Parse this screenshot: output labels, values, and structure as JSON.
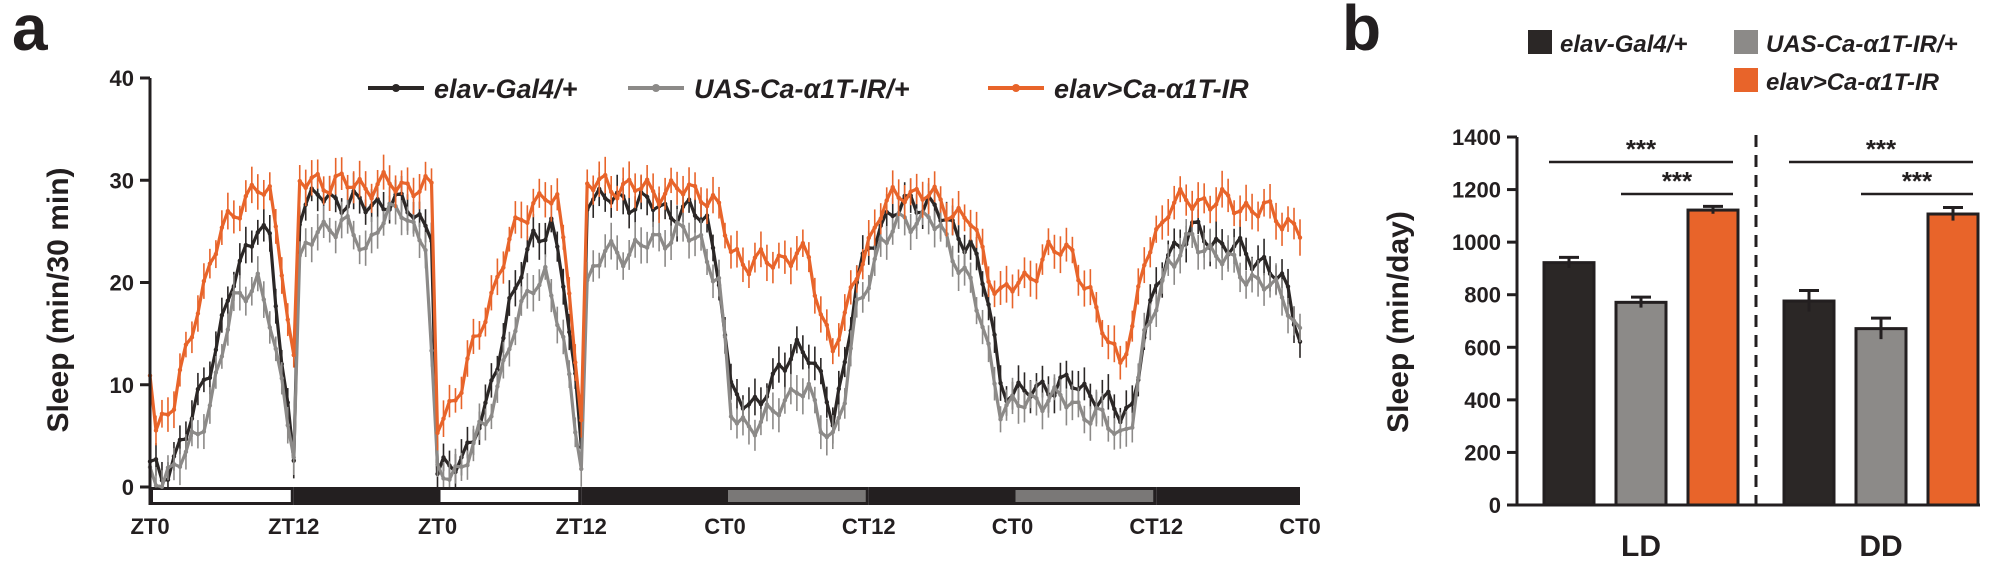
{
  "colors": {
    "black": "#2b2726",
    "gray": "#8c8a88",
    "orange": "#e8642a",
    "light_line": "#ffffff",
    "dark_bar": "#231f20",
    "subjective_day": "#7a7877"
  },
  "chart_data": [
    {
      "panel": "a",
      "type": "line",
      "ylabel": "Sleep (min/30 min)",
      "ylim": [
        0,
        40
      ],
      "yticks": [
        "0",
        "10",
        "20",
        "30",
        "40"
      ],
      "xticklabels": [
        "ZT0",
        "ZT12",
        "ZT0",
        "ZT12",
        "CT0",
        "CT12",
        "CT0",
        "CT12",
        "CT0"
      ],
      "x_unit": "30-min bins",
      "x_range": [
        0,
        192
      ],
      "light_bar": [
        {
          "start": 0,
          "end": 24,
          "state": "light"
        },
        {
          "start": 24,
          "end": 48,
          "state": "dark"
        },
        {
          "start": 48,
          "end": 72,
          "state": "light"
        },
        {
          "start": 72,
          "end": 96,
          "state": "dark"
        },
        {
          "start": 96,
          "end": 120,
          "state": "subjective-day"
        },
        {
          "start": 120,
          "end": 144,
          "state": "dark"
        },
        {
          "start": 144,
          "end": 168,
          "state": "subjective-day"
        },
        {
          "start": 168,
          "end": 192,
          "state": "dark"
        }
      ],
      "series": [
        {
          "name": "elav-Gal4/+",
          "color": "#2b2726",
          "keypoints": [
            [
              0,
              2
            ],
            [
              2,
              1
            ],
            [
              6,
              5
            ],
            [
              10,
              12
            ],
            [
              14,
              20
            ],
            [
              18,
              26
            ],
            [
              20,
              24
            ],
            [
              22,
              12
            ],
            [
              24,
              3
            ],
            [
              25,
              27
            ],
            [
              28,
              28.5
            ],
            [
              32,
              28
            ],
            [
              36,
              27.5
            ],
            [
              40,
              28
            ],
            [
              44,
              27
            ],
            [
              47,
              25
            ],
            [
              48,
              1
            ],
            [
              52,
              3
            ],
            [
              56,
              7
            ],
            [
              60,
              18
            ],
            [
              64,
              24
            ],
            [
              67,
              26
            ],
            [
              69,
              20
            ],
            [
              71,
              10
            ],
            [
              72,
              4
            ],
            [
              73,
              28.5
            ],
            [
              78,
              28
            ],
            [
              82,
              28
            ],
            [
              86,
              27
            ],
            [
              90,
              27
            ],
            [
              93,
              26
            ],
            [
              95,
              21
            ],
            [
              97,
              9
            ],
            [
              100,
              8
            ],
            [
              104,
              10
            ],
            [
              108,
              14
            ],
            [
              110,
              13
            ],
            [
              112,
              10
            ],
            [
              114,
              7
            ],
            [
              116,
              12
            ],
            [
              118,
              20
            ],
            [
              122,
              26
            ],
            [
              126,
              27.5
            ],
            [
              130,
              28
            ],
            [
              134,
              25
            ],
            [
              137,
              24
            ],
            [
              140,
              18
            ],
            [
              142,
              10
            ],
            [
              146,
              9
            ],
            [
              150,
              10
            ],
            [
              154,
              10
            ],
            [
              158,
              9
            ],
            [
              160,
              8
            ],
            [
              162,
              7
            ],
            [
              164,
              8
            ],
            [
              166,
              15
            ],
            [
              170,
              23
            ],
            [
              174,
              25
            ],
            [
              178,
              24
            ],
            [
              182,
              23
            ],
            [
              186,
              22
            ],
            [
              190,
              19
            ],
            [
              192,
              15
            ]
          ]
        },
        {
          "name": "UAS-Ca-α1T-IR/+",
          "color": "#8c8a88",
          "keypoints": [
            [
              0,
              1
            ],
            [
              2,
              1
            ],
            [
              6,
              3
            ],
            [
              10,
              8
            ],
            [
              14,
              18
            ],
            [
              16,
              19.5
            ],
            [
              18,
              20
            ],
            [
              20,
              16
            ],
            [
              22,
              10
            ],
            [
              24,
              4
            ],
            [
              25,
              22
            ],
            [
              28,
              25
            ],
            [
              32,
              26
            ],
            [
              36,
              23
            ],
            [
              38,
              26
            ],
            [
              42,
              27
            ],
            [
              46,
              24
            ],
            [
              48,
              1
            ],
            [
              52,
              2
            ],
            [
              56,
              6
            ],
            [
              60,
              14
            ],
            [
              64,
              20
            ],
            [
              66,
              21
            ],
            [
              69,
              14
            ],
            [
              71,
              6
            ],
            [
              72,
              3
            ],
            [
              73,
              20
            ],
            [
              76,
              23
            ],
            [
              80,
              23
            ],
            [
              84,
              24
            ],
            [
              88,
              25
            ],
            [
              92,
              24
            ],
            [
              95,
              20
            ],
            [
              97,
              7
            ],
            [
              100,
              6
            ],
            [
              104,
              7
            ],
            [
              108,
              10
            ],
            [
              110,
              9
            ],
            [
              112,
              6
            ],
            [
              114,
              5
            ],
            [
              116,
              9
            ],
            [
              118,
              17
            ],
            [
              122,
              24
            ],
            [
              126,
              26
            ],
            [
              130,
              26.5
            ],
            [
              134,
              23
            ],
            [
              137,
              20
            ],
            [
              140,
              13
            ],
            [
              142,
              8
            ],
            [
              146,
              8
            ],
            [
              150,
              9
            ],
            [
              154,
              8
            ],
            [
              158,
              7
            ],
            [
              160,
              6
            ],
            [
              162,
              5
            ],
            [
              164,
              7
            ],
            [
              166,
              14
            ],
            [
              170,
              22
            ],
            [
              174,
              24
            ],
            [
              178,
              23
            ],
            [
              182,
              21
            ],
            [
              186,
              20
            ],
            [
              190,
              18
            ],
            [
              192,
              15
            ]
          ]
        },
        {
          "name": "elav>Ca-α1T-IR",
          "color": "#e8642a",
          "keypoints": [
            [
              0,
              12
            ],
            [
              1,
              6
            ],
            [
              4,
              8
            ],
            [
              8,
              18
            ],
            [
              12,
              25
            ],
            [
              16,
              28.5
            ],
            [
              18,
              29
            ],
            [
              20,
              28.5
            ],
            [
              22,
              22
            ],
            [
              24,
              12
            ],
            [
              25,
              29.5
            ],
            [
              28,
              30
            ],
            [
              34,
              29.5
            ],
            [
              40,
              29.5
            ],
            [
              44,
              29.5
            ],
            [
              47,
              29
            ],
            [
              48,
              6
            ],
            [
              52,
              10
            ],
            [
              56,
              17
            ],
            [
              60,
              24
            ],
            [
              64,
              28
            ],
            [
              66,
              28.5
            ],
            [
              68,
              27.5
            ],
            [
              70,
              20
            ],
            [
              72,
              6
            ],
            [
              73,
              29.5
            ],
            [
              78,
              29.5
            ],
            [
              84,
              29
            ],
            [
              88,
              29
            ],
            [
              92,
              29
            ],
            [
              95,
              27
            ],
            [
              97,
              23
            ],
            [
              100,
              22
            ],
            [
              104,
              22
            ],
            [
              108,
              23
            ],
            [
              110,
              22
            ],
            [
              112,
              17
            ],
            [
              114,
              14
            ],
            [
              116,
              16
            ],
            [
              118,
              21
            ],
            [
              122,
              27
            ],
            [
              126,
              29
            ],
            [
              130,
              28.5
            ],
            [
              134,
              27
            ],
            [
              137,
              26
            ],
            [
              140,
              21
            ],
            [
              142,
              19
            ],
            [
              146,
              20
            ],
            [
              150,
              23
            ],
            [
              154,
              23
            ],
            [
              158,
              17
            ],
            [
              160,
              14
            ],
            [
              162,
              13
            ],
            [
              164,
              15
            ],
            [
              166,
              22
            ],
            [
              170,
              27.5
            ],
            [
              174,
              28
            ],
            [
              178,
              28
            ],
            [
              182,
              27.5
            ],
            [
              186,
              27
            ],
            [
              190,
              26
            ],
            [
              192,
              25
            ]
          ]
        }
      ]
    },
    {
      "panel": "b",
      "type": "bar",
      "ylabel": "Sleep (min/day)",
      "ylim": [
        0,
        1400
      ],
      "yticks": [
        "0",
        "200",
        "400",
        "600",
        "800",
        "1000",
        "1200",
        "1400"
      ],
      "categories": [
        "LD",
        "DD"
      ],
      "series": [
        {
          "name": "elav-Gal4/+",
          "color": "#2b2726",
          "values": [
            922,
            776
          ],
          "errors": [
            20,
            40
          ]
        },
        {
          "name": "UAS-Ca-α1T-IR/+",
          "color": "#8c8a88",
          "values": [
            771,
            671
          ],
          "errors": [
            20,
            40
          ]
        },
        {
          "name": "elav>Ca-α1T-IR",
          "color": "#e8642a",
          "values": [
            1122,
            1107
          ],
          "errors": [
            14,
            25
          ]
        }
      ],
      "significance": [
        {
          "category": "LD",
          "from": 0,
          "to": 2,
          "label": "***"
        },
        {
          "category": "LD",
          "from": 1,
          "to": 2,
          "label": "***"
        },
        {
          "category": "DD",
          "from": 0,
          "to": 2,
          "label": "***"
        },
        {
          "category": "DD",
          "from": 1,
          "to": 2,
          "label": "***"
        }
      ]
    }
  ],
  "panel_labels": [
    "a",
    "b"
  ]
}
